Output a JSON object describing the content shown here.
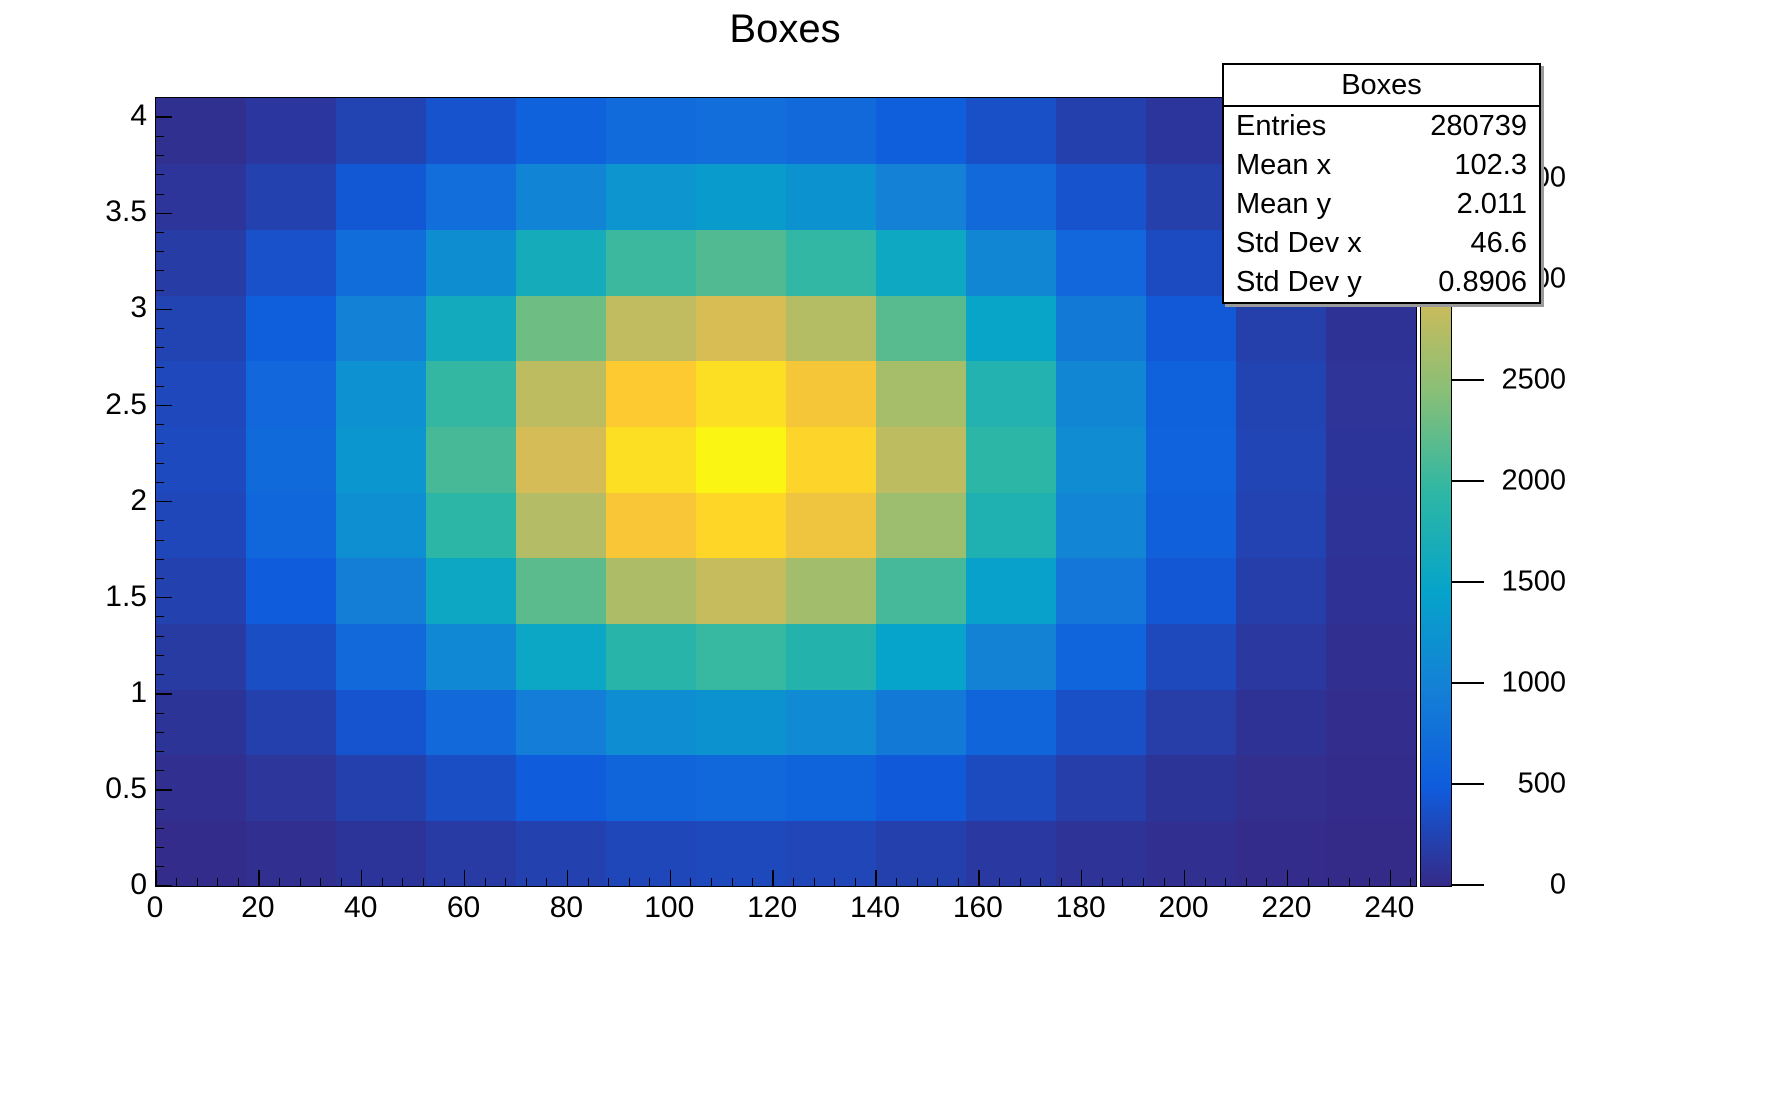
{
  "title": "Boxes",
  "background_color": "#ffffff",
  "axis_color": "#000000",
  "stats_box": {
    "title": "Boxes",
    "rows": [
      {
        "label": "Entries",
        "value": "280739"
      },
      {
        "label": "Mean x",
        "value": "102.3"
      },
      {
        "label": "Mean y",
        "value": "2.011"
      },
      {
        "label": "Std Dev x",
        "value": "46.6"
      },
      {
        "label": "Std Dev y",
        "value": "0.8906"
      }
    ]
  },
  "chart_data": {
    "type": "heatmap",
    "title": "Boxes",
    "xlabel": "",
    "ylabel": "",
    "x_range": [
      0,
      245
    ],
    "y_range": [
      0,
      4.1
    ],
    "z_range": [
      0,
      3900
    ],
    "x_ticks": [
      0,
      20,
      40,
      60,
      80,
      100,
      120,
      140,
      160,
      180,
      200,
      220,
      240
    ],
    "x_minor_tick_step": 4,
    "y_ticks": [
      0,
      0.5,
      1,
      1.5,
      2,
      2.5,
      3,
      3.5,
      4
    ],
    "y_minor_tick_step": 0.1,
    "z_ticks": [
      0,
      500,
      1000,
      1500,
      2000,
      2500,
      3000,
      3500
    ],
    "n_x_bins": 14,
    "n_y_bins": 12,
    "x_bin_width": 17.5,
    "y_bin_width": 0.3417,
    "values_rows_bottom_to_top": [
      [
        24,
        53,
        100,
        163,
        231,
        282,
        299,
        274,
        218,
        149,
        89,
        46,
        20,
        8
      ],
      [
        52,
        114,
        215,
        352,
        498,
        610,
        646,
        592,
        470,
        323,
        191,
        98,
        44,
        17
      ],
      [
        98,
        214,
        405,
        662,
        937,
        1147,
        1216,
        1114,
        884,
        607,
        360,
        185,
        82,
        32
      ],
      [
        161,
        352,
        664,
        1087,
        1539,
        1884,
        1997,
        1830,
        1453,
        997,
        591,
        304,
        135,
        52
      ],
      [
        230,
        502,
        949,
        1552,
        2197,
        2690,
        2851,
        2613,
        2074,
        1424,
        844,
        434,
        193,
        74
      ],
      [
        286,
        625,
        1180,
        1931,
        2733,
        3347,
        3547,
        3251,
        2581,
        1771,
        1051,
        540,
        240,
        92
      ],
      [
        310,
        677,
        1279,
        2093,
        2963,
        3629,
        3845,
        3525,
        2798,
        1920,
        1139,
        585,
        260,
        100
      ],
      [
        293,
        640,
        1208,
        1977,
        2798,
        3427,
        3632,
        3329,
        2642,
        1814,
        1076,
        552,
        246,
        94
      ],
      [
        241,
        527,
        995,
        1627,
        2303,
        2821,
        2989,
        2740,
        2175,
        1493,
        885,
        455,
        203,
        78
      ],
      [
        173,
        377,
        713,
        1167,
        1651,
        2022,
        2143,
        1964,
        1559,
        1070,
        635,
        326,
        145,
        56
      ],
      [
        108,
        235,
        444,
        727,
        1029,
        1260,
        1335,
        1224,
        971,
        667,
        395,
        203,
        90,
        35
      ],
      [
        59,
        128,
        242,
        396,
        560,
        686,
        727,
        667,
        529,
        363,
        215,
        111,
        49,
        19
      ]
    ],
    "palette": {
      "name": "root-bird",
      "positions": [
        0,
        0.125,
        0.25,
        0.375,
        0.5,
        0.625,
        0.75,
        0.875,
        1
      ],
      "colors": [
        "#352A87",
        "#0F5CDD",
        "#1480D6",
        "#06A4CA",
        "#2EB7A4",
        "#87BF77",
        "#D1BB59",
        "#FEC832",
        "#F9FB0E"
      ]
    },
    "legend_position": "right-colorbar",
    "grid": false
  }
}
